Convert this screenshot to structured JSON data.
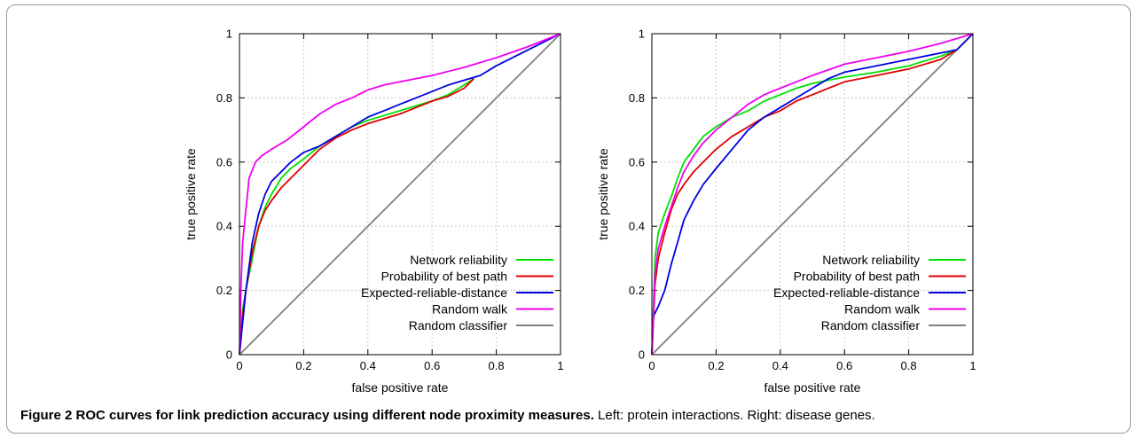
{
  "caption": {
    "label": "Figure 2",
    "title": "ROC curves for link prediction accuracy using different node proximity measures.",
    "text": "Left: protein interactions. Right: disease genes."
  },
  "chart_data": [
    {
      "type": "line",
      "xlabel": "false positive rate",
      "ylabel": "true positive rate",
      "xlim": [
        0,
        1
      ],
      "ylim": [
        0,
        1
      ],
      "xticks": [
        "0",
        "0.2",
        "0.4",
        "0.6",
        "0.8",
        "1"
      ],
      "yticks": [
        "0",
        "0.2",
        "0.4",
        "0.6",
        "0.8",
        "1"
      ],
      "grid": true,
      "legend": "bottom-right",
      "series": [
        {
          "name": "Network reliability",
          "color": "#00e000",
          "x": [
            0,
            0.01,
            0.02,
            0.04,
            0.06,
            0.08,
            0.1,
            0.13,
            0.16,
            0.2,
            0.25,
            0.3,
            0.35,
            0.4,
            0.45,
            0.5,
            0.55,
            0.6,
            0.65,
            0.7,
            0.73
          ],
          "y": [
            0,
            0.14,
            0.2,
            0.3,
            0.4,
            0.46,
            0.5,
            0.55,
            0.58,
            0.61,
            0.65,
            0.68,
            0.71,
            0.73,
            0.745,
            0.76,
            0.775,
            0.79,
            0.81,
            0.84,
            0.86
          ]
        },
        {
          "name": "Probability of best path",
          "color": "#e00000",
          "x": [
            0,
            0.01,
            0.02,
            0.04,
            0.06,
            0.08,
            0.1,
            0.13,
            0.16,
            0.2,
            0.25,
            0.3,
            0.35,
            0.4,
            0.45,
            0.5,
            0.55,
            0.6,
            0.65,
            0.7,
            0.73
          ],
          "y": [
            0,
            0.12,
            0.2,
            0.32,
            0.4,
            0.45,
            0.48,
            0.52,
            0.55,
            0.59,
            0.64,
            0.675,
            0.7,
            0.72,
            0.735,
            0.75,
            0.77,
            0.79,
            0.805,
            0.83,
            0.86
          ]
        },
        {
          "name": "Expected-reliable-distance",
          "color": "#0000e0",
          "x": [
            0,
            0.01,
            0.02,
            0.04,
            0.06,
            0.08,
            0.1,
            0.13,
            0.16,
            0.2,
            0.25,
            0.3,
            0.35,
            0.4,
            0.45,
            0.5,
            0.55,
            0.6,
            0.65,
            0.7,
            0.75,
            0.8,
            0.9,
            1
          ],
          "y": [
            0,
            0.1,
            0.2,
            0.35,
            0.44,
            0.5,
            0.54,
            0.57,
            0.6,
            0.63,
            0.65,
            0.68,
            0.71,
            0.74,
            0.76,
            0.78,
            0.8,
            0.82,
            0.84,
            0.855,
            0.87,
            0.9,
            0.95,
            1
          ]
        },
        {
          "name": "Random walk",
          "color": "#f000f0",
          "x": [
            0,
            0.005,
            0.01,
            0.02,
            0.03,
            0.05,
            0.07,
            0.1,
            0.15,
            0.2,
            0.25,
            0.3,
            0.35,
            0.4,
            0.45,
            0.5,
            0.6,
            0.7,
            0.8,
            0.9,
            1
          ],
          "y": [
            0,
            0.22,
            0.35,
            0.45,
            0.55,
            0.6,
            0.62,
            0.64,
            0.67,
            0.71,
            0.75,
            0.78,
            0.8,
            0.825,
            0.84,
            0.85,
            0.87,
            0.895,
            0.925,
            0.96,
            1
          ]
        },
        {
          "name": "Random classifier",
          "color": "#808080",
          "x": [
            0,
            1
          ],
          "y": [
            0,
            1
          ]
        }
      ]
    },
    {
      "type": "line",
      "xlabel": "false positive rate",
      "ylabel": "true positive rate",
      "xlim": [
        0,
        1
      ],
      "ylim": [
        0,
        1
      ],
      "xticks": [
        "0",
        "0.2",
        "0.4",
        "0.6",
        "0.8",
        "1"
      ],
      "yticks": [
        "0",
        "0.2",
        "0.4",
        "0.6",
        "0.8",
        "1"
      ],
      "grid": true,
      "legend": "bottom-right",
      "series": [
        {
          "name": "Network reliability",
          "color": "#00e000",
          "x": [
            0,
            0.01,
            0.02,
            0.04,
            0.06,
            0.08,
            0.1,
            0.13,
            0.16,
            0.2,
            0.25,
            0.3,
            0.35,
            0.4,
            0.45,
            0.5,
            0.55,
            0.6,
            0.7,
            0.8,
            0.9,
            0.95
          ],
          "y": [
            0,
            0.3,
            0.38,
            0.44,
            0.49,
            0.55,
            0.6,
            0.64,
            0.68,
            0.71,
            0.74,
            0.76,
            0.79,
            0.81,
            0.83,
            0.845,
            0.855,
            0.865,
            0.88,
            0.9,
            0.93,
            0.95
          ]
        },
        {
          "name": "Probability of best path",
          "color": "#e00000",
          "x": [
            0,
            0.01,
            0.02,
            0.04,
            0.06,
            0.08,
            0.1,
            0.13,
            0.16,
            0.2,
            0.25,
            0.3,
            0.35,
            0.4,
            0.45,
            0.5,
            0.55,
            0.6,
            0.7,
            0.8,
            0.9,
            0.95
          ],
          "y": [
            0,
            0.22,
            0.3,
            0.38,
            0.45,
            0.5,
            0.53,
            0.57,
            0.6,
            0.64,
            0.68,
            0.71,
            0.74,
            0.76,
            0.79,
            0.81,
            0.83,
            0.85,
            0.87,
            0.89,
            0.92,
            0.95
          ]
        },
        {
          "name": "Expected-reliable-distance",
          "color": "#0000e0",
          "x": [
            0,
            0.005,
            0.02,
            0.04,
            0.06,
            0.08,
            0.1,
            0.13,
            0.16,
            0.2,
            0.25,
            0.3,
            0.35,
            0.4,
            0.45,
            0.5,
            0.55,
            0.6,
            0.7,
            0.8,
            0.9,
            0.95,
            1
          ],
          "y": [
            0,
            0.12,
            0.15,
            0.2,
            0.28,
            0.35,
            0.42,
            0.48,
            0.53,
            0.58,
            0.64,
            0.7,
            0.74,
            0.77,
            0.8,
            0.83,
            0.86,
            0.88,
            0.9,
            0.92,
            0.94,
            0.95,
            1
          ]
        },
        {
          "name": "Random walk",
          "color": "#f000f0",
          "x": [
            0,
            0.01,
            0.02,
            0.04,
            0.06,
            0.08,
            0.1,
            0.13,
            0.16,
            0.2,
            0.25,
            0.3,
            0.35,
            0.4,
            0.45,
            0.5,
            0.6,
            0.7,
            0.8,
            0.9,
            1
          ],
          "y": [
            0,
            0.25,
            0.33,
            0.4,
            0.46,
            0.52,
            0.57,
            0.62,
            0.66,
            0.7,
            0.74,
            0.78,
            0.81,
            0.83,
            0.85,
            0.87,
            0.905,
            0.925,
            0.945,
            0.97,
            1
          ]
        },
        {
          "name": "Random classifier",
          "color": "#808080",
          "x": [
            0,
            1
          ],
          "y": [
            0,
            1
          ]
        }
      ]
    }
  ]
}
